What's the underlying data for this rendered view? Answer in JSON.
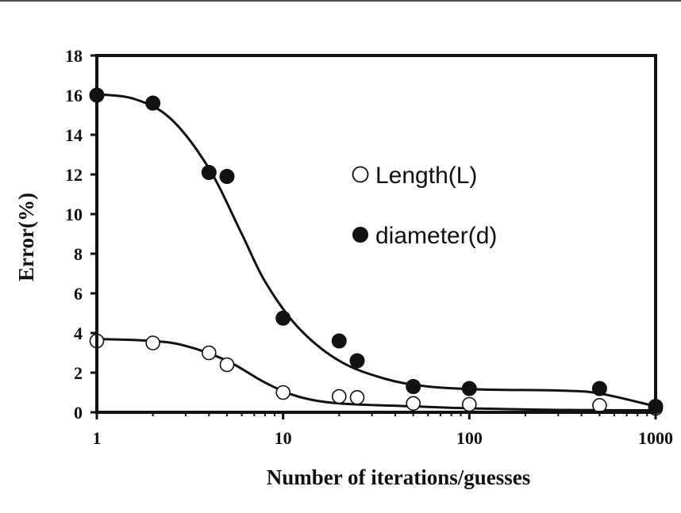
{
  "chart_data": {
    "type": "scatter",
    "xscale": "log",
    "xlim": [
      1,
      1000
    ],
    "ylim": [
      0,
      18
    ],
    "xticks": [
      1,
      10,
      100,
      1000
    ],
    "xtick_labels": [
      "1",
      "10",
      "100",
      "1000"
    ],
    "yticks": [
      0,
      2,
      4,
      6,
      8,
      10,
      12,
      14,
      16,
      18
    ],
    "ytick_labels": [
      "0",
      "2",
      "4",
      "6",
      "8",
      "10",
      "12",
      "14",
      "16",
      "18"
    ],
    "xlabel": "Number of iterations/guesses",
    "ylabel": "Error(%)",
    "grid": false,
    "legend_position": "center-right",
    "series": [
      {
        "name": "Length(L)",
        "marker": "open-circle",
        "color": "#111111",
        "points": [
          {
            "x": 1,
            "y": 3.6
          },
          {
            "x": 2,
            "y": 3.5
          },
          {
            "x": 4,
            "y": 3.0
          },
          {
            "x": 5,
            "y": 2.4
          },
          {
            "x": 10,
            "y": 1.0
          },
          {
            "x": 20,
            "y": 0.8
          },
          {
            "x": 25,
            "y": 0.75
          },
          {
            "x": 50,
            "y": 0.45
          },
          {
            "x": 100,
            "y": 0.4
          },
          {
            "x": 500,
            "y": 0.35
          },
          {
            "x": 1000,
            "y": 0.2
          }
        ],
        "trend": [
          {
            "x": 1,
            "y": 3.7
          },
          {
            "x": 2,
            "y": 3.6
          },
          {
            "x": 3,
            "y": 3.35
          },
          {
            "x": 5,
            "y": 2.6
          },
          {
            "x": 8,
            "y": 1.5
          },
          {
            "x": 12,
            "y": 0.8
          },
          {
            "x": 20,
            "y": 0.45
          },
          {
            "x": 50,
            "y": 0.3
          },
          {
            "x": 100,
            "y": 0.2
          },
          {
            "x": 300,
            "y": 0.12
          },
          {
            "x": 1000,
            "y": 0.1
          }
        ]
      },
      {
        "name": "diameter(d)",
        "marker": "filled-circle",
        "color": "#111111",
        "points": [
          {
            "x": 1,
            "y": 16.0
          },
          {
            "x": 2,
            "y": 15.6
          },
          {
            "x": 4,
            "y": 12.1
          },
          {
            "x": 5,
            "y": 11.9
          },
          {
            "x": 10,
            "y": 4.75
          },
          {
            "x": 20,
            "y": 3.6
          },
          {
            "x": 25,
            "y": 2.6
          },
          {
            "x": 50,
            "y": 1.3
          },
          {
            "x": 100,
            "y": 1.2
          },
          {
            "x": 500,
            "y": 1.2
          },
          {
            "x": 1000,
            "y": 0.3
          }
        ],
        "trend": [
          {
            "x": 1,
            "y": 16.05
          },
          {
            "x": 1.6,
            "y": 15.8
          },
          {
            "x": 2.5,
            "y": 14.8
          },
          {
            "x": 4,
            "y": 12.3
          },
          {
            "x": 6,
            "y": 9.0
          },
          {
            "x": 8,
            "y": 6.6
          },
          {
            "x": 12,
            "y": 4.3
          },
          {
            "x": 20,
            "y": 2.6
          },
          {
            "x": 35,
            "y": 1.7
          },
          {
            "x": 60,
            "y": 1.3
          },
          {
            "x": 120,
            "y": 1.15
          },
          {
            "x": 300,
            "y": 1.1
          },
          {
            "x": 500,
            "y": 0.95
          },
          {
            "x": 1000,
            "y": 0.3
          }
        ]
      }
    ]
  }
}
